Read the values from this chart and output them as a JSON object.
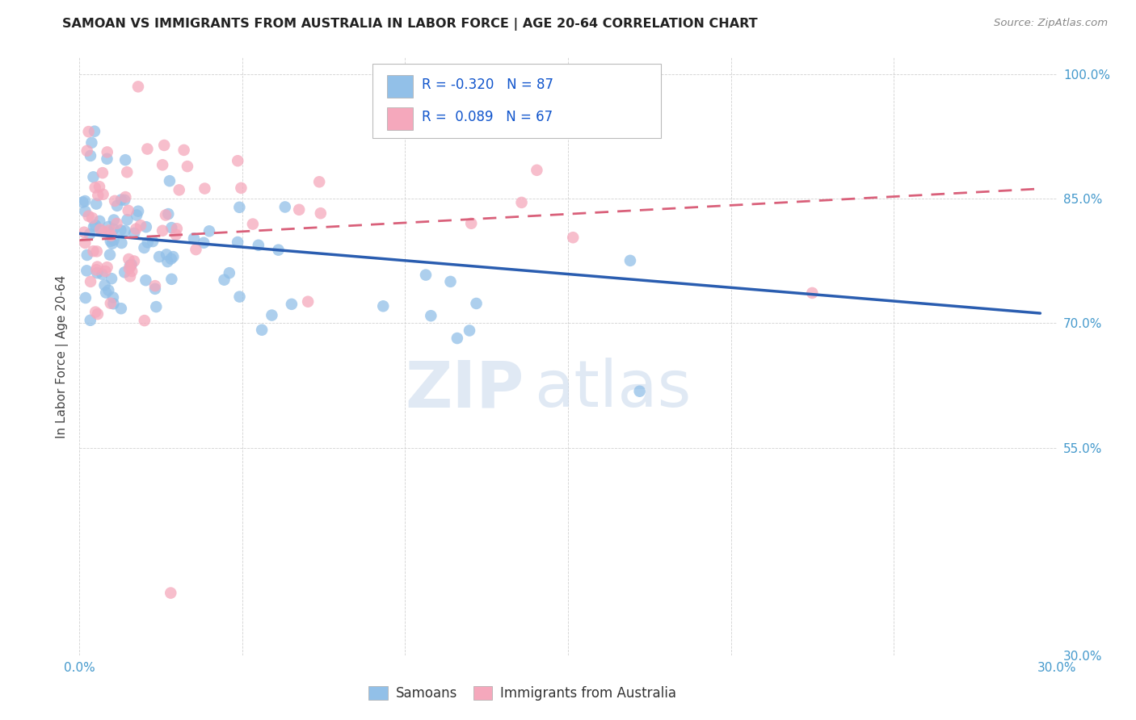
{
  "title": "SAMOAN VS IMMIGRANTS FROM AUSTRALIA IN LABOR FORCE | AGE 20-64 CORRELATION CHART",
  "source": "Source: ZipAtlas.com",
  "ylabel": "In Labor Force | Age 20-64",
  "xlim": [
    0.0,
    0.3
  ],
  "ylim": [
    0.3,
    1.02
  ],
  "xtick_vals": [
    0.0,
    0.05,
    0.1,
    0.15,
    0.2,
    0.25,
    0.3
  ],
  "xtick_labels": [
    "0.0%",
    "",
    "",
    "",
    "",
    "",
    "30.0%"
  ],
  "ytick_vals": [
    0.3,
    0.55,
    0.7,
    0.85,
    1.0
  ],
  "ytick_labels": [
    "30.0%",
    "55.0%",
    "70.0%",
    "85.0%",
    "100.0%"
  ],
  "blue_label": "Samoans",
  "pink_label": "Immigrants from Australia",
  "r_blue": -0.32,
  "n_blue": 87,
  "r_pink": 0.089,
  "n_pink": 67,
  "blue_scatter_color": "#92C0E8",
  "pink_scatter_color": "#F5A8BC",
  "blue_line_color": "#2A5DB0",
  "pink_line_color": "#D9607A",
  "blue_line_x": [
    0.0,
    0.295
  ],
  "blue_line_y": [
    0.808,
    0.712
  ],
  "pink_line_x": [
    0.0,
    0.295
  ],
  "pink_line_y": [
    0.8,
    0.862
  ],
  "tick_color": "#4499CC",
  "axis_label_color": "#444444",
  "grid_color": "#CCCCCC",
  "title_color": "#222222",
  "source_color": "#888888",
  "watermark_color": "#C8D8EC",
  "legend_text_color": "#2244BB",
  "legend_rn_color": "#1155CC"
}
